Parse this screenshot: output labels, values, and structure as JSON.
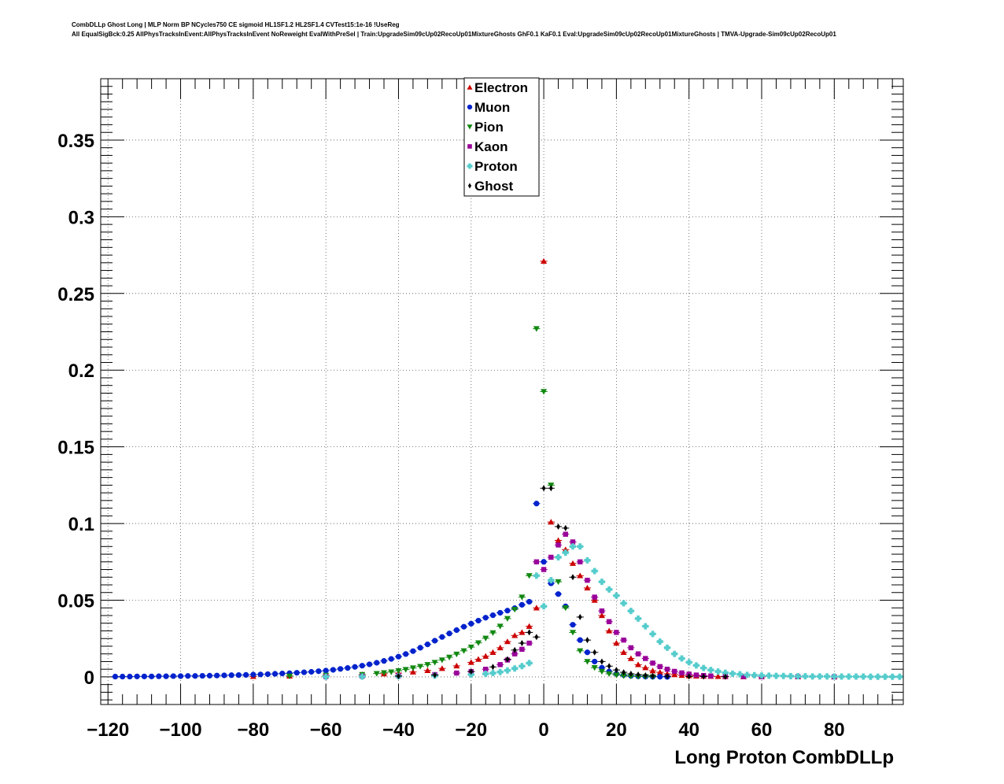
{
  "header": {
    "line1": "CombDLLp Ghost Long | MLP Norm BP NCycles750 CE sigmoid HL1SF1.2 HL2SF1.4 CVTest15:1e-16 !UseReg",
    "line2": "All EqualSigBck:0.25 AllPhysTracksInEvent:AllPhysTracksInEvent NoReweight EvalWithPreSel | Train:UpgradeSim09cUp02RecoUp01MixtureGhosts GhF0.1 KaF0.1 Eval:UpgradeSim09cUp02RecoUp01MixtureGhosts | TMVA-Upgrade-Sim09cUp02RecoUp01"
  },
  "chart_data": {
    "type": "scatter",
    "title": "",
    "xlabel": "Long Proton CombDLLp",
    "ylabel": "",
    "xlim": [
      -122,
      99
    ],
    "ylim": [
      -0.018,
      0.39
    ],
    "x_ticks": [
      -120,
      -100,
      -80,
      -60,
      -40,
      -20,
      0,
      20,
      40,
      60,
      80
    ],
    "x_tick_labels": [
      "−120",
      "−100",
      "−80",
      "−60",
      "−40",
      "−20",
      "0",
      "20",
      "40",
      "60",
      "80"
    ],
    "y_ticks": [
      0,
      0.05,
      0.1,
      0.15,
      0.2,
      0.25,
      0.3,
      0.35
    ],
    "y_tick_labels": [
      "0",
      "0.05",
      "0.1",
      "0.15",
      "0.2",
      "0.25",
      "0.3",
      "0.35"
    ],
    "grid": true,
    "legend_position": "top-center",
    "series": [
      {
        "name": "Electron",
        "color": "#cc0000",
        "marker": "triangle-up",
        "x": [
          -80,
          -70,
          -60,
          -50,
          -44,
          -40,
          -36,
          -32,
          -28,
          -24,
          -20,
          -18,
          -16,
          -14,
          -12,
          -10,
          -8,
          -6,
          -4,
          -2,
          0,
          2,
          4,
          6,
          8,
          10,
          12,
          14,
          16,
          18,
          20,
          22,
          24,
          26,
          28,
          30,
          32,
          34,
          36,
          38,
          40,
          42,
          44,
          46,
          48,
          50,
          55,
          60,
          70,
          80
        ],
        "y": [
          0.0003,
          0.0006,
          0.001,
          0.0015,
          0.002,
          0.0025,
          0.0032,
          0.0042,
          0.0055,
          0.0072,
          0.0095,
          0.0115,
          0.0135,
          0.016,
          0.019,
          0.023,
          0.027,
          0.029,
          0.033,
          0.045,
          0.271,
          0.101,
          0.089,
          0.083,
          0.074,
          0.066,
          0.058,
          0.05,
          0.04,
          0.03,
          0.022,
          0.016,
          0.012,
          0.008,
          0.006,
          0.004,
          0.003,
          0.002,
          0.0015,
          0.001,
          0.0008,
          0.0006,
          0.0005,
          0.0004,
          0.0003,
          0.0002,
          0.0001,
          0.0001,
          0.0001,
          0.0
        ]
      },
      {
        "name": "Muon",
        "color": "#0022cc",
        "marker": "circle",
        "x": [
          -118,
          -116,
          -114,
          -112,
          -110,
          -108,
          -106,
          -104,
          -102,
          -100,
          -98,
          -96,
          -94,
          -92,
          -90,
          -88,
          -86,
          -84,
          -82,
          -80,
          -78,
          -76,
          -74,
          -72,
          -70,
          -68,
          -66,
          -64,
          -62,
          -60,
          -58,
          -56,
          -54,
          -52,
          -50,
          -48,
          -46,
          -44,
          -42,
          -40,
          -38,
          -36,
          -34,
          -32,
          -30,
          -28,
          -26,
          -24,
          -22,
          -20,
          -18,
          -16,
          -14,
          -12,
          -10,
          -8,
          -6,
          -4,
          -2,
          0,
          2,
          4,
          6,
          8,
          10,
          12,
          14,
          16,
          18,
          20,
          22,
          24,
          26,
          28,
          30,
          32,
          34
        ],
        "y": [
          0.0002,
          0.0002,
          0.0002,
          0.0003,
          0.0003,
          0.0003,
          0.0004,
          0.0004,
          0.0005,
          0.0005,
          0.0006,
          0.0006,
          0.0007,
          0.0008,
          0.0009,
          0.001,
          0.0011,
          0.0012,
          0.0013,
          0.0015,
          0.0016,
          0.0018,
          0.002,
          0.0022,
          0.0024,
          0.0027,
          0.003,
          0.0033,
          0.0037,
          0.0041,
          0.0046,
          0.0052,
          0.0058,
          0.0065,
          0.0073,
          0.0082,
          0.0092,
          0.0104,
          0.0117,
          0.0132,
          0.0149,
          0.0168,
          0.019,
          0.0212,
          0.0236,
          0.026,
          0.0283,
          0.0305,
          0.0327,
          0.0347,
          0.0367,
          0.0386,
          0.0402,
          0.0418,
          0.0432,
          0.0448,
          0.047,
          0.049,
          0.113,
          0.075,
          0.061,
          0.054,
          0.046,
          0.034,
          0.024,
          0.016,
          0.01,
          0.006,
          0.0035,
          0.002,
          0.0012,
          0.0007,
          0.0004,
          0.0002,
          0.0001,
          0.0001,
          0.0
        ]
      },
      {
        "name": "Pion",
        "color": "#118811",
        "marker": "triangle-down",
        "x": [
          -70,
          -60,
          -50,
          -46,
          -44,
          -42,
          -40,
          -38,
          -36,
          -34,
          -32,
          -30,
          -28,
          -26,
          -24,
          -22,
          -20,
          -18,
          -16,
          -14,
          -12,
          -10,
          -8,
          -6,
          -4,
          -2,
          0,
          2,
          4,
          6,
          8,
          10,
          12,
          14,
          16,
          18,
          20,
          22,
          24,
          26,
          28,
          30
        ],
        "y": [
          0.0005,
          0.001,
          0.0015,
          0.0022,
          0.0027,
          0.0032,
          0.004,
          0.0048,
          0.0058,
          0.0068,
          0.008,
          0.0094,
          0.011,
          0.0128,
          0.0148,
          0.017,
          0.0194,
          0.0222,
          0.0252,
          0.0287,
          0.033,
          0.038,
          0.044,
          0.052,
          0.066,
          0.227,
          0.186,
          0.125,
          0.062,
          0.045,
          0.029,
          0.017,
          0.01,
          0.006,
          0.0035,
          0.002,
          0.0012,
          0.0007,
          0.0004,
          0.0002,
          0.0001,
          0.0
        ]
      },
      {
        "name": "Kaon",
        "color": "#990099",
        "marker": "square",
        "x": [
          -60,
          -50,
          -40,
          -30,
          -24,
          -20,
          -16,
          -12,
          -10,
          -8,
          -6,
          -4,
          -2,
          0,
          2,
          4,
          6,
          8,
          10,
          12,
          14,
          16,
          18,
          20,
          22,
          24,
          26,
          28,
          30,
          32,
          34,
          36,
          38,
          40,
          42,
          44,
          46,
          50,
          55,
          60,
          70,
          80
        ],
        "y": [
          0.0003,
          0.0005,
          0.0008,
          0.0015,
          0.0025,
          0.0035,
          0.005,
          0.008,
          0.011,
          0.015,
          0.018,
          0.022,
          0.075,
          0.07,
          0.078,
          0.086,
          0.093,
          0.088,
          0.075,
          0.063,
          0.052,
          0.043,
          0.036,
          0.029,
          0.024,
          0.019,
          0.015,
          0.012,
          0.009,
          0.0067,
          0.005,
          0.0036,
          0.0026,
          0.0018,
          0.0012,
          0.0009,
          0.0006,
          0.0004,
          0.0002,
          0.0001,
          0.0001,
          0.0
        ]
      },
      {
        "name": "Proton",
        "color": "#55cccc",
        "marker": "cross",
        "x": [
          -60,
          -50,
          -40,
          -30,
          -20,
          -16,
          -14,
          -12,
          -10,
          -8,
          -6,
          -4,
          -2,
          0,
          2,
          4,
          6,
          8,
          10,
          12,
          14,
          16,
          18,
          20,
          22,
          24,
          26,
          28,
          30,
          32,
          34,
          36,
          38,
          40,
          42,
          44,
          46,
          48,
          50,
          52,
          54,
          56,
          58,
          60,
          62,
          64,
          66,
          68,
          70,
          72,
          74,
          76,
          78,
          80,
          82,
          84,
          86,
          88,
          90,
          92,
          94,
          96,
          98
        ],
        "y": [
          0.0001,
          0.0002,
          0.0004,
          0.0008,
          0.0015,
          0.002,
          0.0025,
          0.0032,
          0.0042,
          0.0055,
          0.007,
          0.009,
          0.066,
          0.046,
          0.063,
          0.078,
          0.081,
          0.085,
          0.085,
          0.076,
          0.069,
          0.062,
          0.057,
          0.053,
          0.048,
          0.043,
          0.038,
          0.033,
          0.028,
          0.023,
          0.019,
          0.015,
          0.012,
          0.0095,
          0.0075,
          0.0058,
          0.0045,
          0.0035,
          0.0027,
          0.0021,
          0.0017,
          0.0013,
          0.0011,
          0.0009,
          0.0008,
          0.0007,
          0.0006,
          0.0005,
          0.0004,
          0.0004,
          0.0003,
          0.0003,
          0.0003,
          0.0002,
          0.0002,
          0.0002,
          0.0002,
          0.0002,
          0.0001,
          0.0001,
          0.0001,
          0.0001,
          0.0001
        ]
      },
      {
        "name": "Ghost",
        "color": "#000000",
        "marker": "diamond",
        "x": [
          -40,
          -30,
          -20,
          -14,
          -10,
          -8,
          -6,
          -4,
          -2,
          0,
          2,
          4,
          6,
          8,
          10,
          12,
          14,
          16,
          18,
          20,
          22,
          24,
          26,
          28,
          30,
          34,
          40,
          44,
          50
        ],
        "y": [
          0.0005,
          0.0012,
          0.0035,
          0.0065,
          0.0115,
          0.0175,
          0.022,
          0.029,
          0.026,
          0.123,
          0.123,
          0.098,
          0.097,
          0.065,
          0.039,
          0.024,
          0.016,
          0.01,
          0.007,
          0.0045,
          0.003,
          0.002,
          0.0015,
          0.001,
          0.0006,
          0.0004,
          0.0003,
          0.0002,
          0.0001
        ]
      }
    ]
  }
}
